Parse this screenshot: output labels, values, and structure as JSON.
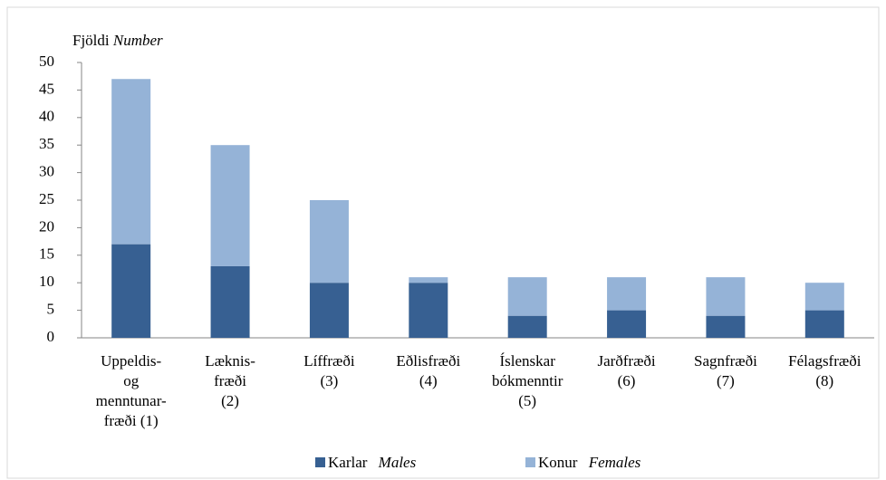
{
  "chart_data": {
    "type": "stacked_bar",
    "y_label": "Fjöldi",
    "y_label_en": "Number",
    "categories": [
      [
        "Uppeldis-",
        "og",
        "menntunar-",
        "fræði (1)"
      ],
      [
        "Læknis-",
        "fræði",
        "(2)"
      ],
      [
        "Líffræði",
        "(3)"
      ],
      [
        "Eðlisfræði",
        "(4)"
      ],
      [
        "Íslenskar",
        "bókmenntir",
        "(5)"
      ],
      [
        "Jarðfræði",
        "(6)"
      ],
      [
        "Sagnfræði",
        "(7)"
      ],
      [
        "Félagsfræði",
        "(8)"
      ]
    ],
    "series": [
      {
        "name": "Karlar",
        "name_en": "Males",
        "color": "#376092",
        "values": [
          17,
          13,
          10,
          10,
          4,
          5,
          4,
          5
        ]
      },
      {
        "name": "Konur",
        "name_en": "Females",
        "color": "#95b3d7",
        "values": [
          30,
          22,
          15,
          1,
          7,
          6,
          7,
          5
        ]
      }
    ],
    "ylim": [
      0,
      50
    ],
    "yticks": [
      0,
      5,
      10,
      15,
      20,
      25,
      30,
      35,
      40,
      45,
      50
    ],
    "grid": false
  }
}
